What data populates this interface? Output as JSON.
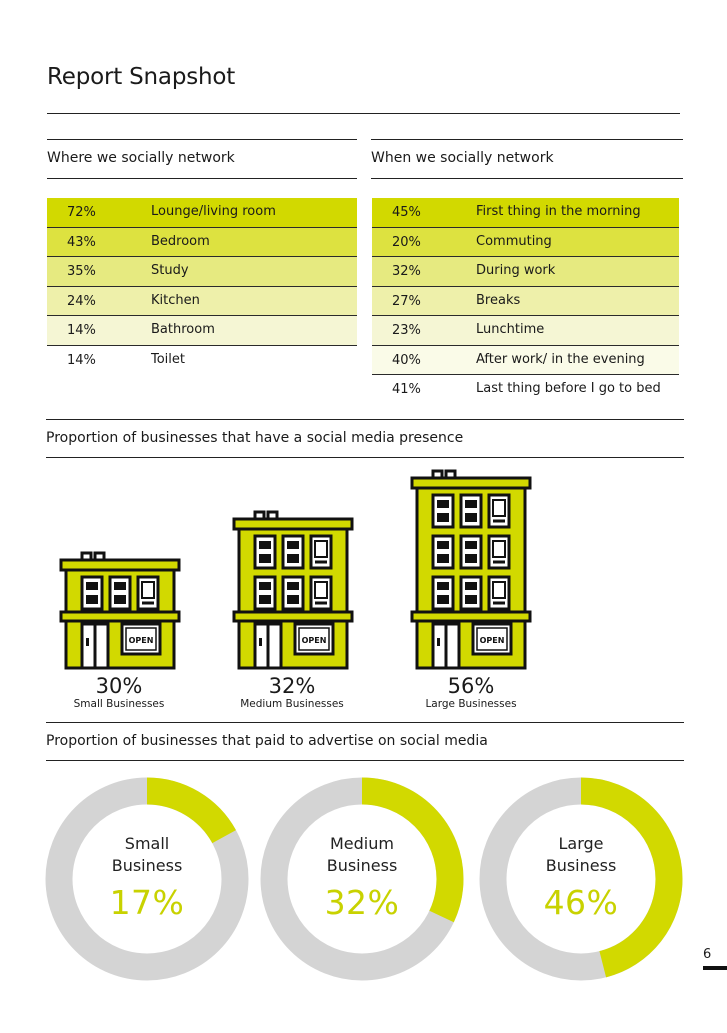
{
  "title": "Report Snapshot",
  "where": {
    "title": "Where we socially network",
    "rows": [
      {
        "pct": "72%",
        "label": "Lounge/living room",
        "color": "#d2d900"
      },
      {
        "pct": "43%",
        "label": "Bedroom",
        "color": "#dde240"
      },
      {
        "pct": "35%",
        "label": "Study",
        "color": "#e6ea80"
      },
      {
        "pct": "24%",
        "label": "Kitchen",
        "color": "#eef0aa"
      },
      {
        "pct": "14%",
        "label": "Bathroom",
        "color": "#f5f6d4"
      },
      {
        "pct": "14%",
        "label": "Toilet",
        "color": "#ffffff"
      }
    ]
  },
  "when": {
    "title": "When we socially network",
    "rows": [
      {
        "pct": "45%",
        "label": "First thing in the morning",
        "color": "#d2d900"
      },
      {
        "pct": "20%",
        "label": "Commuting",
        "color": "#dde240"
      },
      {
        "pct": "32%",
        "label": "During work",
        "color": "#e6ea80"
      },
      {
        "pct": "27%",
        "label": "Breaks",
        "color": "#eef0aa"
      },
      {
        "pct": "23%",
        "label": "Lunchtime",
        "color": "#f5f6d4"
      },
      {
        "pct": "40%",
        "label": "After work/ in the evening",
        "color": "#fafbe8"
      },
      {
        "pct": "41%",
        "label": "Last thing before I go to bed",
        "color": "#ffffff"
      }
    ]
  },
  "presence": {
    "title": "Proportion of businesses that have a social media presence",
    "buildings": [
      {
        "pct": "30%",
        "name": "Small Businesses",
        "floors": 1,
        "sign": "OPEN"
      },
      {
        "pct": "32%",
        "name": "Medium Businesses",
        "floors": 2,
        "sign": "OPEN"
      },
      {
        "pct": "56%",
        "name": "Large Businesses",
        "floors": 3,
        "sign": "OPEN"
      }
    ]
  },
  "advertise": {
    "title": "Proportion of businesses that paid to advertise on social media",
    "donuts": [
      {
        "line1": "Small",
        "line2": "Business",
        "pct": "17%",
        "value": 17
      },
      {
        "line1": "Medium",
        "line2": "Business",
        "pct": "32%",
        "value": 32
      },
      {
        "line1": "Large",
        "line2": "Business",
        "pct": "46%",
        "value": 46
      }
    ]
  },
  "colors": {
    "accent": "#c8d200",
    "donut_bg": "#d4d4d4",
    "dark": "#1a1a1a"
  },
  "page_number": "6"
}
